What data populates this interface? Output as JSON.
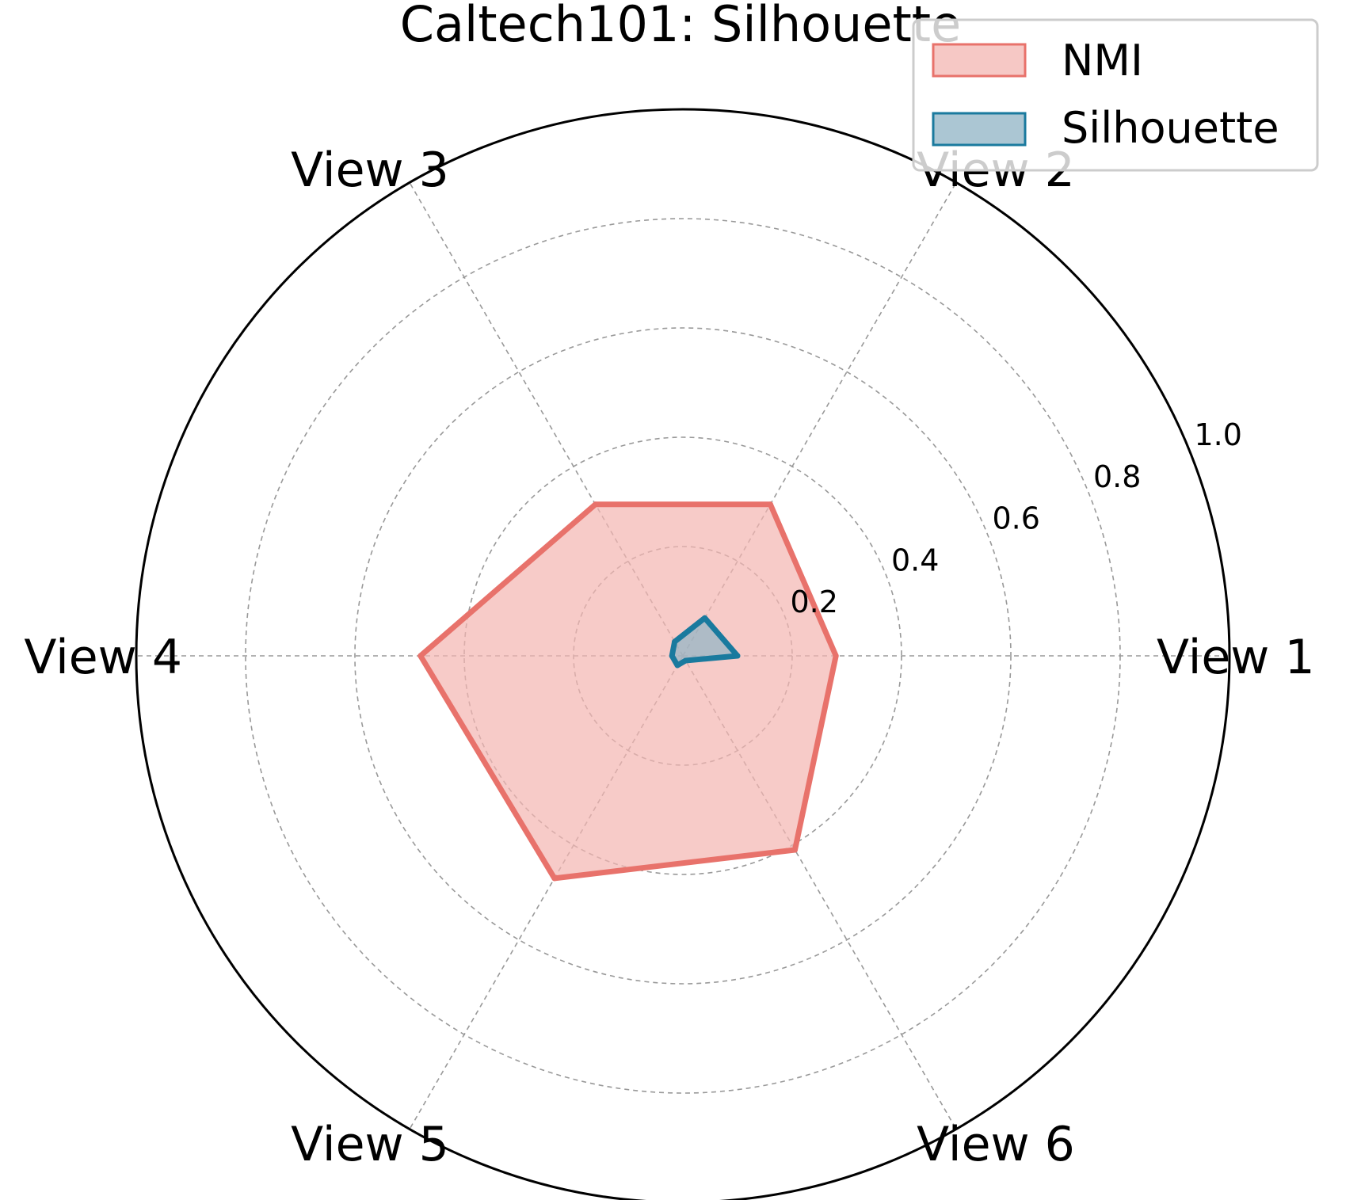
{
  "chart_data": {
    "type": "radar",
    "title": "Caltech101: Silhouette",
    "categories": [
      "View 1",
      "View 2",
      "View 3",
      "View 4",
      "View 5",
      "View 6"
    ],
    "rlim": [
      0,
      1.0
    ],
    "rticks": [
      0.2,
      0.4,
      0.6,
      0.8,
      1.0
    ],
    "rtick_labels": [
      "0.2",
      "0.4",
      "0.6",
      "0.8",
      "1.0"
    ],
    "grid": true,
    "legend_position": "upper right",
    "series": [
      {
        "name": "NMI",
        "values": [
          0.28,
          0.32,
          0.32,
          0.48,
          0.47,
          0.41
        ],
        "color": "#E8726B",
        "fill": "#F3B5B1"
      },
      {
        "name": "Silhouette",
        "values": [
          0.1,
          0.08,
          0.03,
          0.02,
          0.02,
          0.01
        ],
        "color": "#1A7A9E",
        "fill": "#8FB3C4"
      }
    ]
  }
}
